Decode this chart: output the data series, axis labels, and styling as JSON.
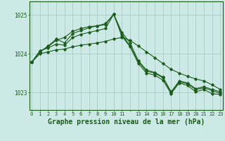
{
  "background_color": "#cce9e5",
  "grid_color": "#aaccca",
  "line_color": "#1a5c1a",
  "marker_color": "#1a5c1a",
  "title": "Graphe pression niveau de la mer (hPa)",
  "ylabel_values": [
    1023,
    1024,
    1025
  ],
  "xlim": [
    -0.3,
    23.3
  ],
  "ylim": [
    1022.55,
    1025.35
  ],
  "series": [
    [
      1023.78,
      1024.05,
      1024.2,
      1024.38,
      1024.28,
      1024.52,
      1024.6,
      1024.67,
      1024.72,
      1024.78,
      1025.02,
      1024.5,
      1024.2,
      1023.8,
      1023.55,
      1023.5,
      1023.38,
      1023.0,
      1023.28,
      1023.22,
      1023.08,
      1023.12,
      1023.05,
      1022.98
    ],
    [
      1023.78,
      1024.05,
      1024.18,
      1024.35,
      1024.42,
      1024.58,
      1024.65,
      1024.7,
      1024.72,
      1024.75,
      1025.02,
      1024.55,
      1024.28,
      1023.82,
      1023.58,
      1023.52,
      1023.4,
      1023.02,
      1023.3,
      1023.25,
      1023.1,
      1023.15,
      1023.08,
      1023.02
    ],
    [
      1023.78,
      1024.08,
      1024.15,
      1024.25,
      1024.22,
      1024.42,
      1024.5,
      1024.55,
      1024.6,
      1024.65,
      1025.02,
      1024.45,
      1024.18,
      1023.75,
      1023.5,
      1023.45,
      1023.32,
      1022.97,
      1023.25,
      1023.18,
      1023.02,
      1023.08,
      1022.97,
      1022.95
    ],
    [
      1023.78,
      1024.0,
      1024.05,
      1024.1,
      1024.12,
      1024.18,
      1024.22,
      1024.25,
      1024.28,
      1024.32,
      1024.38,
      1024.42,
      1024.35,
      1024.2,
      1024.05,
      1023.9,
      1023.75,
      1023.6,
      1023.5,
      1023.42,
      1023.35,
      1023.3,
      1023.2,
      1023.08
    ]
  ],
  "xtick_labels": [
    "0",
    "1",
    "2",
    "3",
    "4",
    "5",
    "6",
    "7",
    "8",
    "9",
    "10",
    "11",
    "",
    "13",
    "14",
    "15",
    "16",
    "17",
    "18",
    "19",
    "20",
    "21",
    "22",
    "23"
  ]
}
